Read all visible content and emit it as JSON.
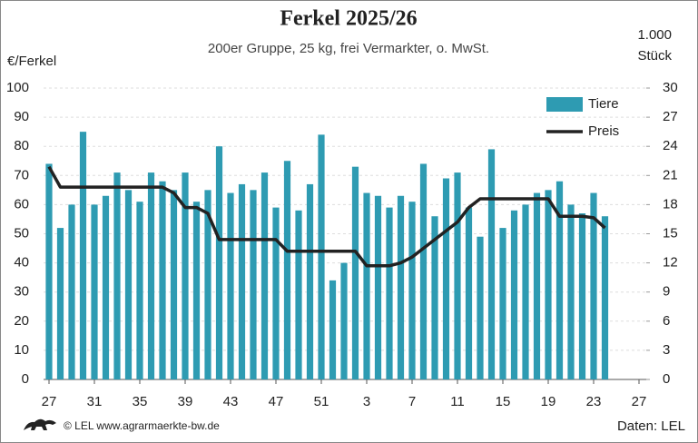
{
  "chart_data": {
    "type": "bar_line",
    "title": "Ferkel 2025/26",
    "subtitle": "200er Gruppe, 25 kg, frei Vermarkter, o. MwSt.",
    "ylabel": "€/Ferkel",
    "y2label": [
      "1.000",
      "Stück"
    ],
    "footer_left": "© LEL www.agrarmaerkte-bw.de",
    "footer_right": "Daten: LEL",
    "categories": [
      "27",
      null,
      null,
      null,
      "31",
      null,
      null,
      null,
      "35",
      null,
      null,
      null,
      "39",
      null,
      null,
      null,
      "43",
      null,
      null,
      null,
      "47",
      null,
      null,
      null,
      "51",
      null,
      null,
      null,
      "3",
      null,
      null,
      null,
      "7",
      null,
      null,
      null,
      "11",
      null,
      null,
      null,
      "15",
      null,
      null,
      null,
      "19",
      null,
      null,
      null,
      "23",
      null,
      null,
      null,
      "27"
    ],
    "series": [
      {
        "name": "Tiere",
        "color": "#2e9bb2",
        "axis": "y2",
        "kind": "bar",
        "values": [
          22.2,
          15.6,
          18,
          25.5,
          18,
          18.9,
          21.3,
          19.5,
          18.3,
          21.3,
          20.4,
          19.5,
          21.3,
          18.3,
          19.5,
          24,
          19.2,
          20.1,
          19.5,
          21.3,
          17.7,
          22.5,
          17.4,
          20.1,
          25.2,
          10.2,
          12,
          21.9,
          19.2,
          18.9,
          17.7,
          18.9,
          18.3,
          22.2,
          16.8,
          20.7,
          21.3,
          17.7,
          14.7,
          23.7,
          15.6,
          17.4,
          18,
          19.2,
          19.5,
          20.4,
          18,
          17.1,
          19.2,
          16.8,
          null,
          null,
          null
        ]
      },
      {
        "name": "Preis",
        "color": "#222222",
        "axis": "y",
        "kind": "line",
        "values": [
          73,
          66,
          66,
          66,
          66,
          66,
          66,
          66,
          66,
          66,
          66,
          64,
          59,
          59,
          57,
          48,
          48,
          48,
          48,
          48,
          48,
          44,
          44,
          44,
          44,
          44,
          44,
          44,
          39,
          39,
          39,
          40,
          42,
          45,
          48,
          51,
          54,
          59,
          62,
          62,
          62,
          62,
          62,
          62,
          62,
          56,
          56,
          56,
          55.5,
          52,
          null,
          null,
          null
        ]
      }
    ],
    "ylim": [
      0,
      100
    ],
    "yticks": [
      0,
      10,
      20,
      30,
      40,
      50,
      60,
      70,
      80,
      90,
      100
    ],
    "y2lim": [
      0,
      30
    ],
    "y2ticks": [
      0,
      3,
      6,
      9,
      12,
      15,
      18,
      21,
      24,
      27,
      30
    ],
    "grid": true,
    "legend": "upper right"
  }
}
